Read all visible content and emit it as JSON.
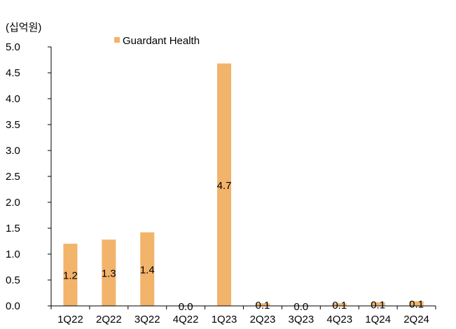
{
  "chart_data": {
    "type": "bar",
    "unit_label": "(십억원)",
    "categories": [
      "1Q22",
      "2Q22",
      "3Q22",
      "4Q22",
      "1Q23",
      "2Q23",
      "3Q23",
      "4Q23",
      "1Q24",
      "2Q24"
    ],
    "series": [
      {
        "name": "Guardant Health",
        "color": "#F2B36A",
        "values": [
          1.2,
          1.28,
          1.42,
          0.0,
          4.68,
          0.05,
          0.0,
          0.05,
          0.07,
          0.09
        ],
        "data_labels": [
          "1.2",
          "1.3",
          "1.4",
          "0.0",
          "4.7",
          "0.1",
          "0.0",
          "0.1",
          "0.1",
          "0.1"
        ]
      }
    ],
    "yticks": [
      "0.0",
      "0.5",
      "1.0",
      "1.5",
      "2.0",
      "2.5",
      "3.0",
      "3.5",
      "4.0",
      "4.5",
      "5.0"
    ],
    "ylim": [
      0,
      5
    ],
    "grid": false,
    "legend_position": "top"
  }
}
